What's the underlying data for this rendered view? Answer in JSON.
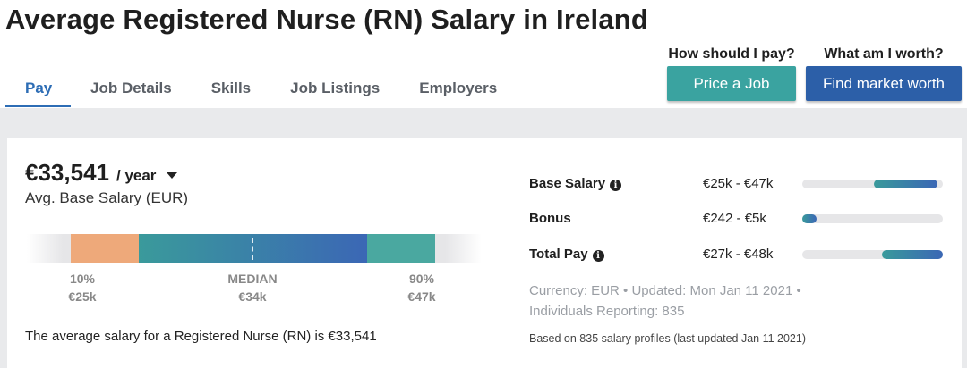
{
  "page": {
    "title": "Average Registered Nurse (RN) Salary in Ireland"
  },
  "tabs": [
    {
      "label": "Pay",
      "active": true
    },
    {
      "label": "Job Details",
      "active": false
    },
    {
      "label": "Skills",
      "active": false
    },
    {
      "label": "Job Listings",
      "active": false
    },
    {
      "label": "Employers",
      "active": false
    }
  ],
  "cta": {
    "pay_question": "How should I pay?",
    "pay_button": "Price a Job",
    "worth_question": "What am I worth?",
    "worth_button": "Find market worth"
  },
  "salary": {
    "amount": "€33,541",
    "period": "/ year",
    "label": "Avg. Base Salary (EUR)",
    "percentiles": [
      {
        "label": "10%",
        "value": "€25k"
      },
      {
        "label": "MEDIAN",
        "value": "€34k"
      },
      {
        "label": "90%",
        "value": "€47k"
      }
    ],
    "summary": "The average salary for a Registered Nurse (RN) is €33,541"
  },
  "compensation": [
    {
      "label": "Base Salary",
      "has_info": true,
      "range": "€25k - €47k",
      "bar_start": 0.51,
      "bar_end": 0.96
    },
    {
      "label": "Bonus",
      "has_info": false,
      "range": "€242 - €5k",
      "bar_start": 0.0,
      "bar_end": 0.1
    },
    {
      "label": "Total Pay",
      "has_info": true,
      "range": "€27k - €48k",
      "bar_start": 0.57,
      "bar_end": 1.0
    }
  ],
  "meta": {
    "line1": "Currency: EUR • Updated: Mon Jan 11 2021 •",
    "line2": "Individuals Reporting: 835",
    "footnote": "Based on 835 salary profiles (last updated Jan 11 2021)"
  },
  "colors": {
    "accent_blue": "#2d6db5",
    "teal_button": "#3aa3a0",
    "blue_button": "#2c5fa8",
    "low_segment": "#eea97a",
    "high_segment": "#4aa8a0"
  },
  "icons": {
    "info": "info-icon",
    "dropdown": "caret-down-icon"
  }
}
